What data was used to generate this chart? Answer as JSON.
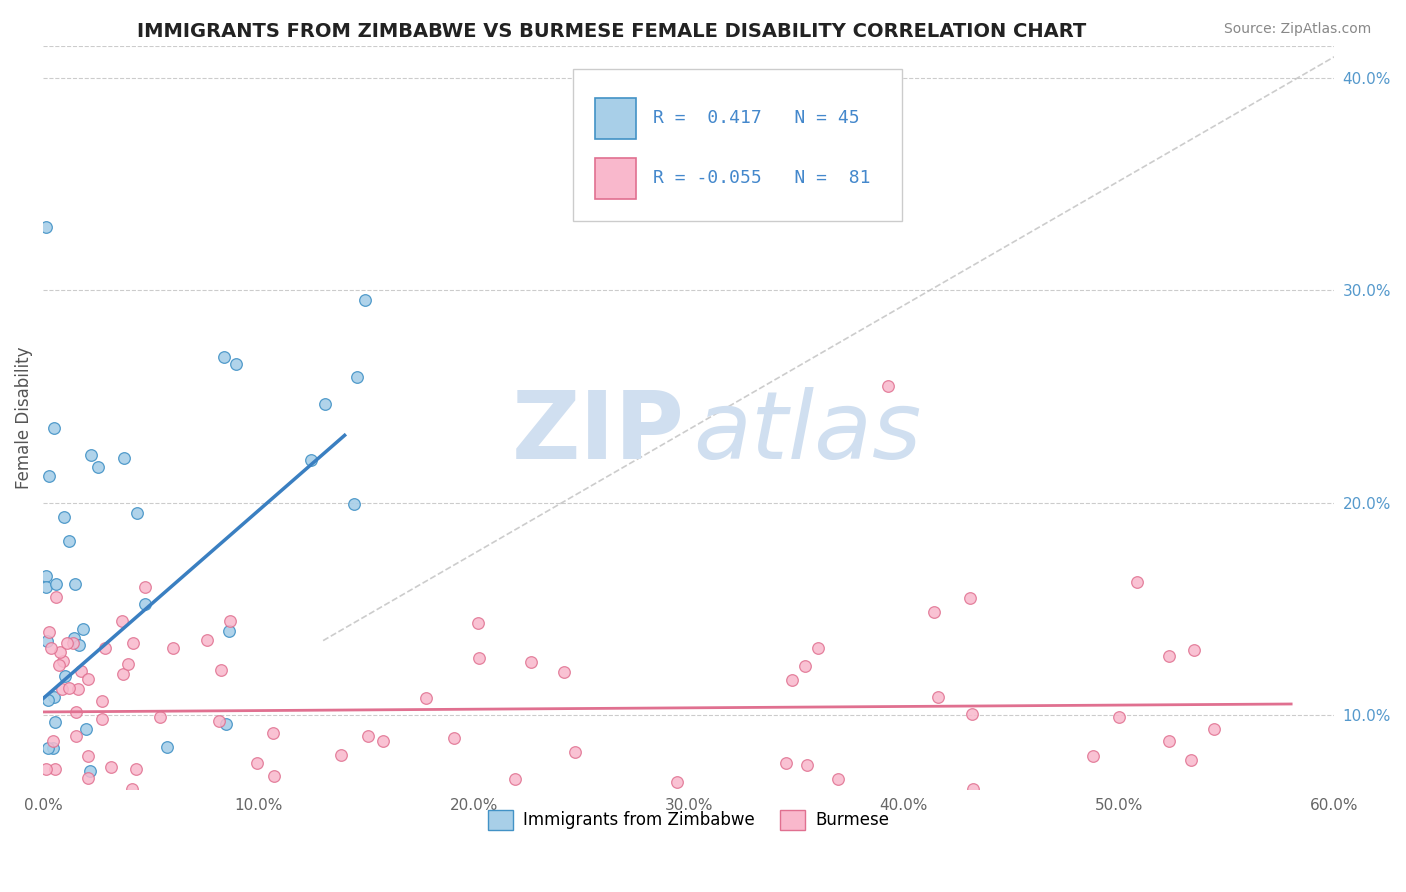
{
  "title": "IMMIGRANTS FROM ZIMBABWE VS BURMESE FEMALE DISABILITY CORRELATION CHART",
  "source": "Source: ZipAtlas.com",
  "ylabel": "Female Disability",
  "legend_label1": "Immigrants from Zimbabwe",
  "legend_label2": "Burmese",
  "r1": 0.417,
  "n1": 45,
  "r2": -0.055,
  "n2": 81,
  "xlim": [
    0.0,
    0.6
  ],
  "ylim": [
    0.065,
    0.415
  ],
  "x_ticks": [
    0.0,
    0.1,
    0.2,
    0.3,
    0.4,
    0.5,
    0.6
  ],
  "x_tick_labels": [
    "0.0%",
    "10.0%",
    "20.0%",
    "30.0%",
    "40.0%",
    "50.0%",
    "60.0%"
  ],
  "y_ticks": [
    0.1,
    0.2,
    0.3,
    0.4
  ],
  "y_tick_labels": [
    "10.0%",
    "20.0%",
    "30.0%",
    "40.0%"
  ],
  "scatter_color1": "#a8cfe8",
  "scatter_edge1": "#4292c6",
  "scatter_color2": "#f9b8cc",
  "scatter_edge2": "#e07090",
  "line_color1": "#3a7fc1",
  "line_color2": "#e07090",
  "dash_color": "#c0c0c0",
  "background_color": "#ffffff",
  "grid_color": "#cccccc",
  "watermark_color": "#d0dff0",
  "tick_color_x": "#666666",
  "tick_color_y": "#5599cc",
  "title_color": "#222222",
  "source_color": "#888888"
}
